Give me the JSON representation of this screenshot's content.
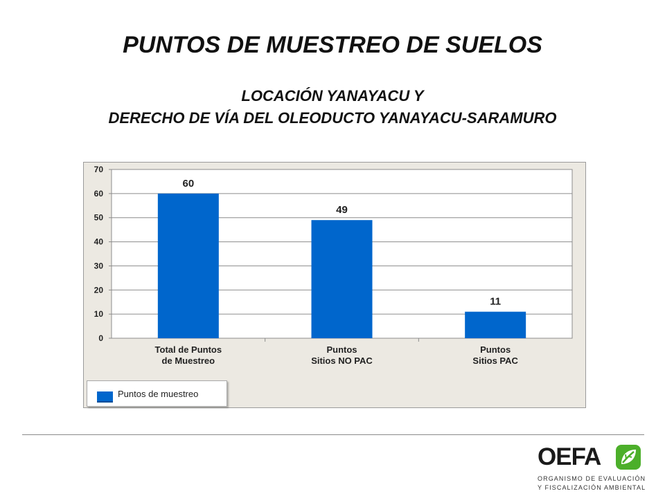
{
  "title": "PUNTOS DE MUESTREO DE SUELOS",
  "subtitle_line1": "LOCACIÓN YANAYACU Y",
  "subtitle_line2": "DERECHO DE VÍA DEL OLEODUCTO YANAYACU-SARAMURO",
  "chart_data": {
    "type": "bar",
    "categories": [
      "Total de Puntos\nde Muestreo",
      "Puntos\nSitios NO PAC",
      "Puntos\nSitios PAC"
    ],
    "series": [
      {
        "name": "Puntos de muestreo",
        "values": [
          60,
          49,
          11
        ]
      }
    ],
    "ylim": [
      0,
      70
    ],
    "yticks": [
      0,
      10,
      20,
      30,
      40,
      50,
      60,
      70
    ],
    "data_labels": true,
    "grid": true,
    "legend_position": "bottom-left",
    "colors": {
      "bar": "#0066cc",
      "plot_background": "#ffffff",
      "chart_background": "#ece9e2"
    }
  },
  "logo": {
    "word": "OEFA",
    "line1": "ORGANISMO DE EVALUACIÓN",
    "line2": "Y FISCALIZACIÓN AMBIENTAL",
    "leaf_color": "#4caf2a"
  }
}
